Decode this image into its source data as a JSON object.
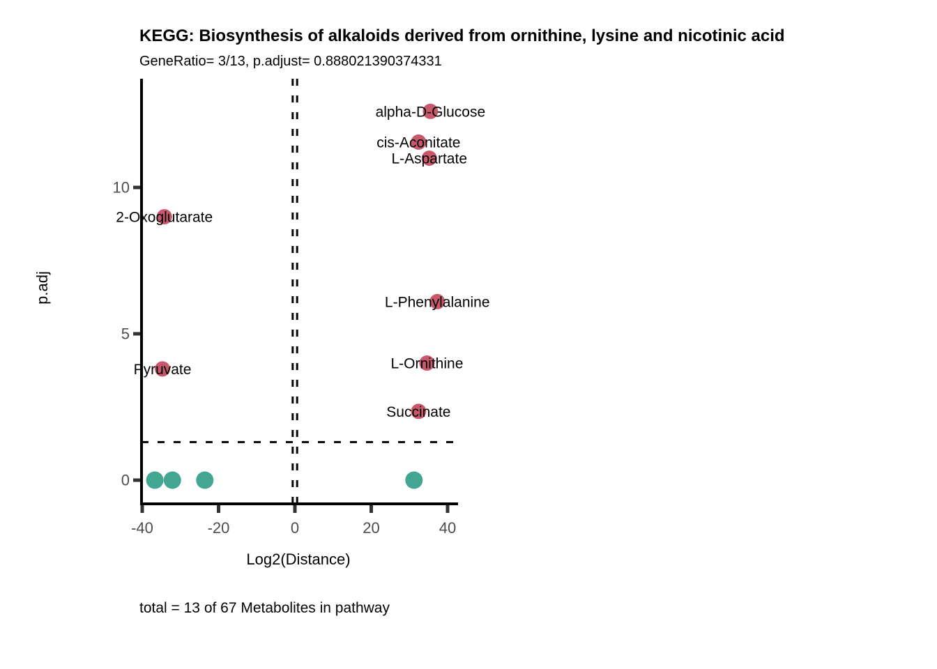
{
  "chart_data": {
    "type": "scatter",
    "title": "KEGG: Biosynthesis of alkaloids derived from ornithine, lysine and nicotinic acid",
    "subtitle": "GeneRatio= 3/13, p.adjust= 0.888021390374331",
    "caption": "total = 13 of 67 Metabolites in pathway",
    "xlabel": "Log2(Distance)",
    "ylabel": "p.adj",
    "xlim": [
      -40.2,
      42.8
    ],
    "ylim": [
      -0.8,
      13.7
    ],
    "xticks": [
      -40,
      -20,
      0,
      20,
      40
    ],
    "yticks": [
      0,
      5,
      10
    ],
    "grid": false,
    "legend": "none",
    "threshold_lines": {
      "hline_y": 1.3,
      "vlines_x": [
        -0.585,
        0.585
      ],
      "line_style": "dashed",
      "color": "#000000"
    },
    "colors": {
      "significant": "#C8596C",
      "not_significant": "#42A692",
      "axis_text": "#4D4D4D",
      "axis_ticks": "#333333",
      "axis_line": "#000000",
      "label_text": "#000000"
    },
    "series": [
      {
        "name": "significant",
        "color_key": "significant",
        "point_radius": 11,
        "show_labels": true,
        "points": [
          {
            "label": "alpha-D-Glucose",
            "x": 35.5,
            "y": 12.6
          },
          {
            "label": "cis-Aconitate",
            "x": 32.4,
            "y": 11.55
          },
          {
            "label": "L-Aspartate",
            "x": 35.2,
            "y": 11.0
          },
          {
            "label": "2-Oxoglutarate",
            "x": -34.2,
            "y": 9.0
          },
          {
            "label": "L-Phenylalanine",
            "x": 37.3,
            "y": 6.1
          },
          {
            "label": "L-Ornithine",
            "x": 34.6,
            "y": 4.0
          },
          {
            "label": "Pyruvate",
            "x": -34.7,
            "y": 3.8
          },
          {
            "label": "Succinate",
            "x": 32.4,
            "y": 2.35
          }
        ]
      },
      {
        "name": "not_significant",
        "color_key": "not_significant",
        "point_radius": 12.5,
        "show_labels": false,
        "points": [
          {
            "x": -36.7,
            "y": 0
          },
          {
            "x": -32.1,
            "y": 0
          },
          {
            "x": -23.6,
            "y": 0
          },
          {
            "x": 31.2,
            "y": 0
          }
        ]
      }
    ]
  }
}
